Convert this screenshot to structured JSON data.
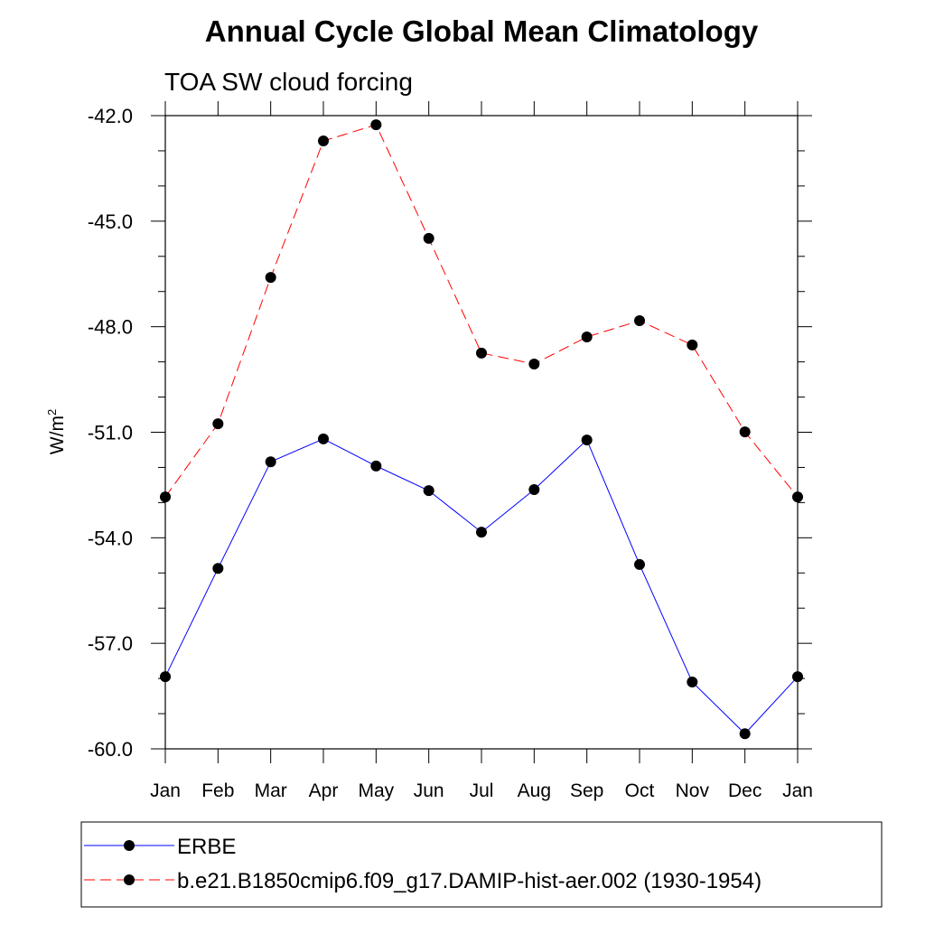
{
  "chart_data": {
    "type": "line",
    "title": "Annual Cycle Global Mean Climatology",
    "subtitle": "TOA SW cloud forcing",
    "ylabel": "W/m",
    "ylabel_superscript": "2",
    "xlabel": "",
    "categories": [
      "Jan",
      "Feb",
      "Mar",
      "Apr",
      "May",
      "Jun",
      "Jul",
      "Aug",
      "Sep",
      "Oct",
      "Nov",
      "Dec",
      "Jan"
    ],
    "ylim": [
      -60,
      -42
    ],
    "yticks": [
      -42,
      -45,
      -48,
      -51,
      -54,
      -57,
      -60
    ],
    "ytick_labels": [
      "-42.0",
      "-45.0",
      "-48.0",
      "-51.0",
      "-54.0",
      "-57.0",
      "-60.0"
    ],
    "yminor_step": 1,
    "grid": false,
    "legend_position": "bottom",
    "series": [
      {
        "name": "ERBE",
        "color": "#0000ff",
        "dash": "solid",
        "values": [
          -57.95,
          -54.87,
          -51.84,
          -51.19,
          -51.96,
          -52.66,
          -53.84,
          -52.63,
          -51.22,
          -54.76,
          -58.1,
          -59.57,
          -57.95
        ]
      },
      {
        "name": "b.e21.B1850cmip6.f09_g17.DAMIP-hist-aer.002 (1930-1954)",
        "color": "#ff0000",
        "dash": "dashed",
        "values": [
          -52.84,
          -50.76,
          -46.6,
          -42.72,
          -42.26,
          -45.49,
          -48.75,
          -49.06,
          -48.29,
          -47.83,
          -48.52,
          -50.99,
          -52.84
        ]
      }
    ]
  }
}
